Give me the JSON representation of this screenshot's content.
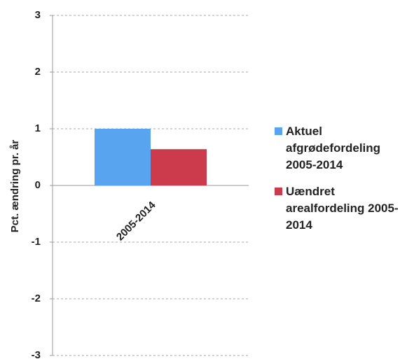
{
  "chart_data": {
    "type": "bar",
    "y_label": "Pct. ændring pr. år",
    "categories": [
      "2005-2014"
    ],
    "series": [
      {
        "name": "Aktuel afgrødefordeling 2005-2014",
        "color": "#58a4ee",
        "values": [
          1.0
        ]
      },
      {
        "name": "Uændret arealfordeling 2005-2014",
        "color": "#cc3b4c",
        "values": [
          0.64
        ]
      }
    ],
    "ylim": [
      -3,
      3
    ],
    "yticks": [
      -3,
      -2,
      -1,
      0,
      1,
      2,
      3
    ],
    "grid": true,
    "legend": "right"
  }
}
